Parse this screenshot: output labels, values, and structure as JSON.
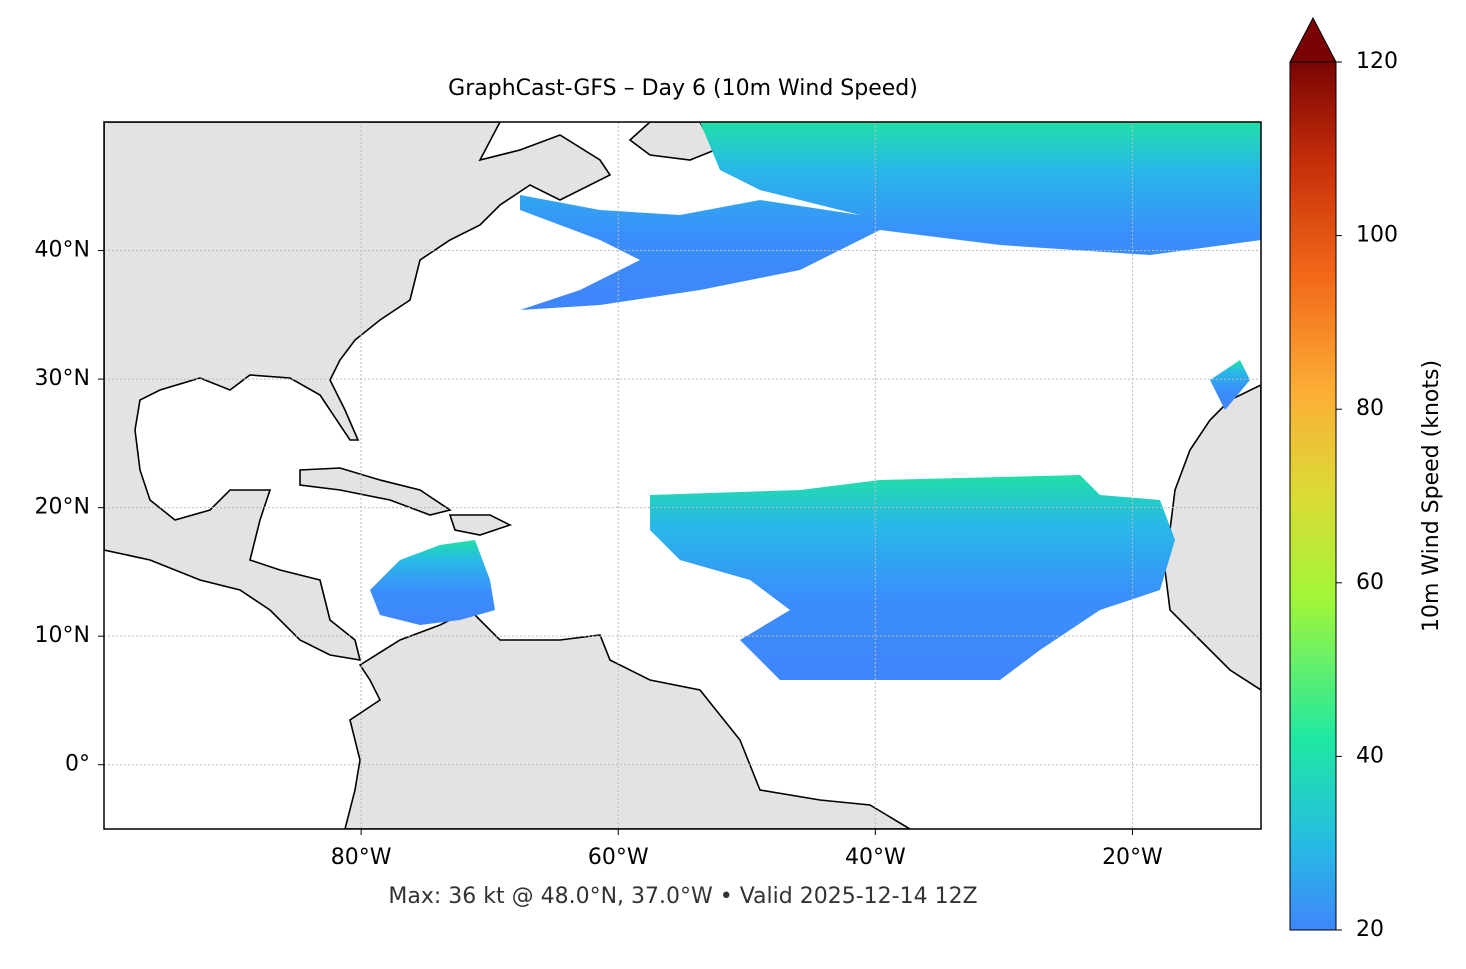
{
  "title": "GraphCast-GFS – Day 6 (10m Wind Speed)",
  "map": {
    "xlim": [
      -100,
      -10
    ],
    "ylim": [
      -5,
      50
    ],
    "xticks": [
      {
        "value": -80,
        "label": "80°W"
      },
      {
        "value": -60,
        "label": "60°W"
      },
      {
        "value": -40,
        "label": "40°W"
      },
      {
        "value": -20,
        "label": "20°W"
      }
    ],
    "yticks": [
      {
        "value": 0,
        "label": "0°"
      },
      {
        "value": 10,
        "label": "10°N"
      },
      {
        "value": 20,
        "label": "20°N"
      },
      {
        "value": 30,
        "label": "30°N"
      },
      {
        "value": 40,
        "label": "40°N"
      }
    ],
    "grid": true
  },
  "colorbar": {
    "label": "10m Wind Speed (knots)",
    "clim": [
      20,
      120
    ],
    "ticks": [
      20,
      40,
      60,
      80,
      100,
      120
    ],
    "extend": "max"
  },
  "footer": "Max: 36 kt @ 48.0°N, 37.0°W • Valid 2025-12-14 12Z"
}
